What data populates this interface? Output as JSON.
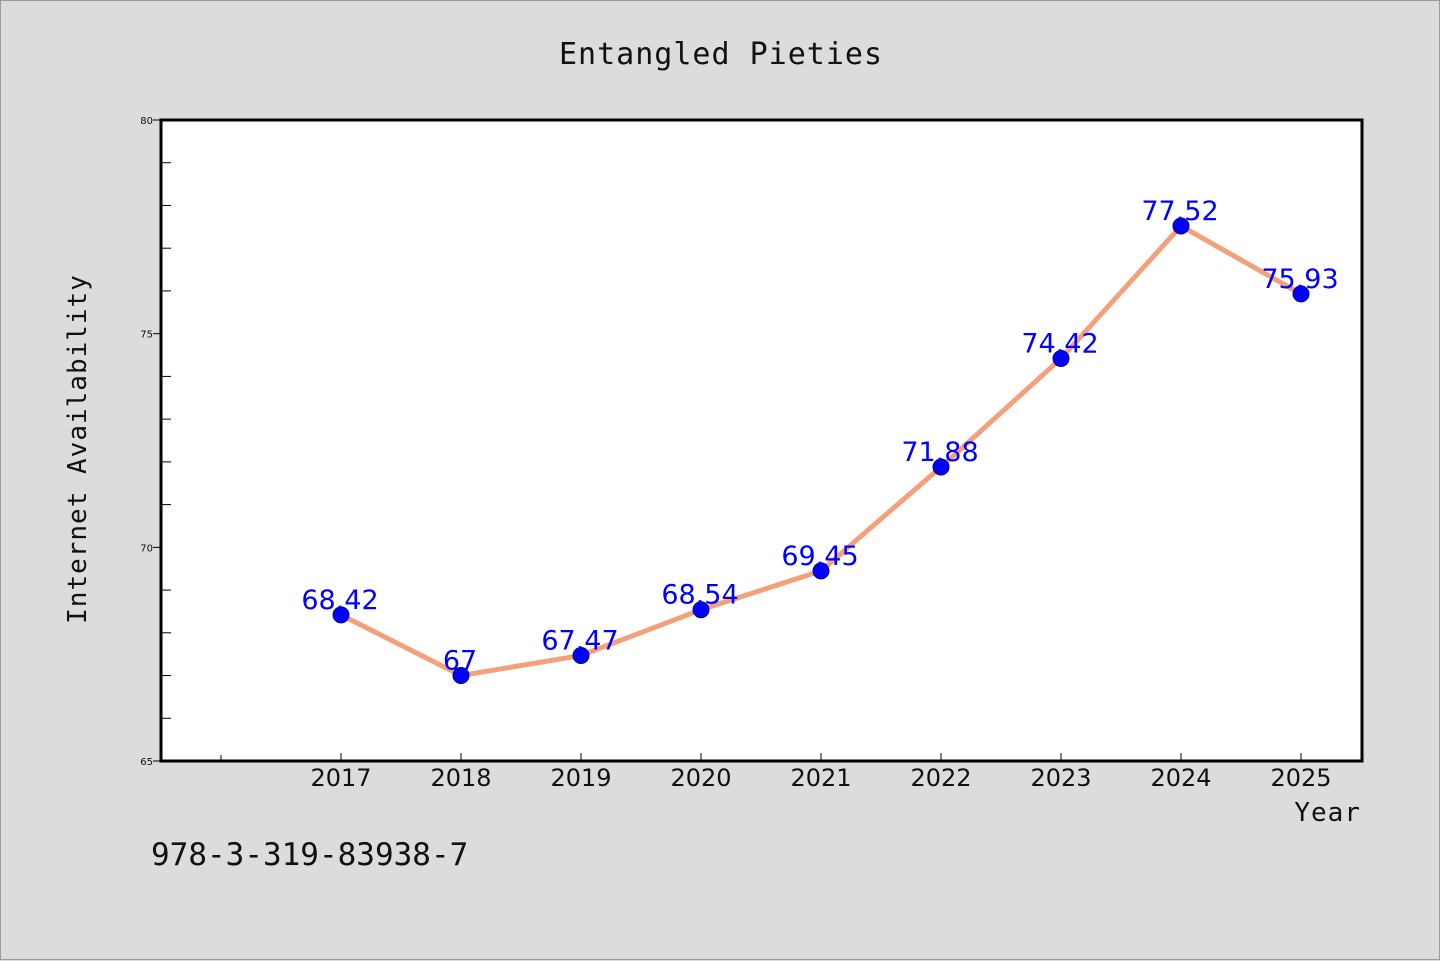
{
  "chart_data": {
    "type": "line",
    "title": "Entangled Pieties",
    "xlabel": "Year",
    "ylabel": "Internet Availability",
    "x": [
      "2017",
      "2018",
      "2019",
      "2020",
      "2021",
      "2022",
      "2023",
      "2024",
      "2025"
    ],
    "series": [
      {
        "values": [
          68.42,
          67,
          67.47,
          68.54,
          69.45,
          71.88,
          74.42,
          77.52,
          75.93
        ],
        "data_labels": [
          "68.42",
          "67",
          "67.47",
          "68.54",
          "69.45",
          "71.88",
          "74.42",
          "77.52",
          "75.93"
        ],
        "line_color": "#f4a07a",
        "marker_color": "#0000ff"
      }
    ],
    "ylim": [
      65,
      80
    ],
    "y_ticks": [
      "65",
      "70",
      "75",
      "80"
    ],
    "grid": false,
    "legend": "none"
  },
  "footer": {
    "isbn": "978-3-319-83938-7"
  },
  "colors": {
    "background": "#dcdcdc",
    "plot_background": "#ffffff",
    "label_color": "#0000ff"
  }
}
